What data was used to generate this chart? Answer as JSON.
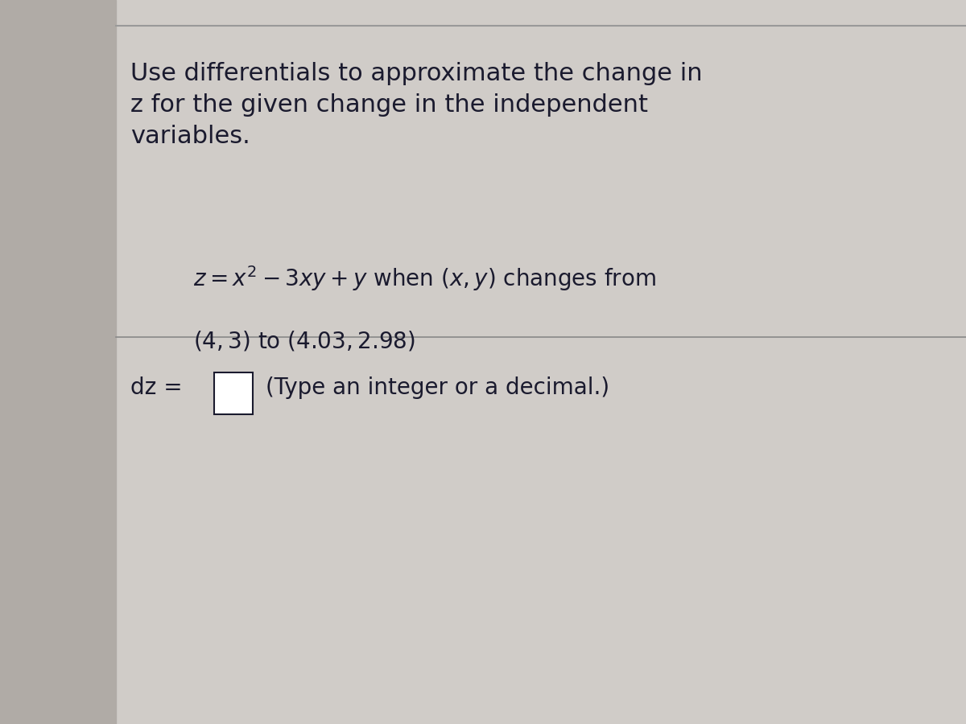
{
  "bg_color": "#d0ccc8",
  "left_bar_color": "#b0aba6",
  "line_color": "#999999",
  "divider_color": "#888888",
  "title_text": "Use differentials to approximate the change in\nz for the given change in the independent\nvariables.",
  "equation_line1": "$z = x^2 - 3xy + y$ when $(x,y)$ changes from",
  "equation_line2": "$(4,3)$ to $(4.03,2.98)$",
  "answer_label": "dz =",
  "answer_hint": "(Type an integer or a decimal.)",
  "title_fontsize": 22,
  "eq_fontsize": 20,
  "answer_fontsize": 20,
  "text_color": "#1a1a2e",
  "box_edge_color": "#1a1a2e"
}
